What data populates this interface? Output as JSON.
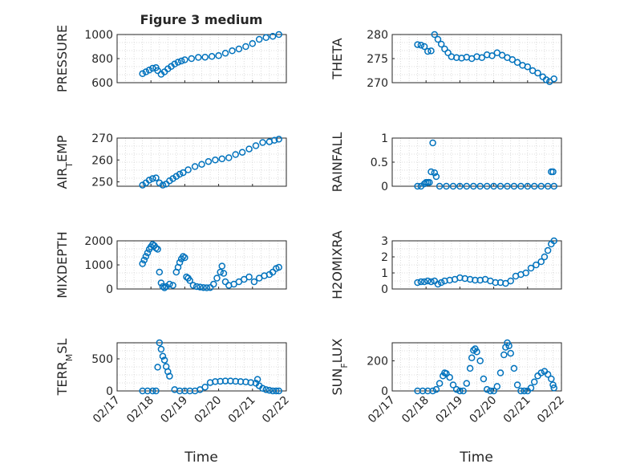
{
  "figure": {
    "title": "Figure 3 medium",
    "xlabel": "Time",
    "marker_color": "#0072bd"
  },
  "chart_data": [
    {
      "type": "scatter",
      "ylabel": "PRESSURE",
      "ylim": [
        600,
        1000
      ],
      "yticks": [
        "600",
        "800",
        "1000"
      ],
      "xlim": [
        0,
        5
      ],
      "xticks": [
        "02/17",
        "02/18",
        "02/19",
        "02/20",
        "02/21",
        "02/22"
      ],
      "show_xticks": false,
      "x": [
        0.75,
        0.85,
        0.95,
        1.05,
        1.15,
        1.2,
        1.3,
        1.4,
        1.5,
        1.6,
        1.7,
        1.8,
        1.9,
        2.0,
        2.2,
        2.4,
        2.6,
        2.8,
        3.0,
        3.2,
        3.4,
        3.6,
        3.8,
        4.0,
        4.2,
        4.4,
        4.6,
        4.78
      ],
      "y": [
        675,
        690,
        705,
        720,
        725,
        700,
        670,
        690,
        715,
        735,
        755,
        770,
        780,
        790,
        800,
        810,
        812,
        818,
        825,
        845,
        865,
        880,
        900,
        925,
        960,
        975,
        985,
        1000
      ]
    },
    {
      "type": "scatter",
      "ylabel": "THETA",
      "ylim": [
        270,
        280
      ],
      "yticks": [
        "270",
        "275",
        "280"
      ],
      "xlim": [
        0,
        5
      ],
      "xticks": [
        "02/17",
        "02/18",
        "02/19",
        "02/20",
        "02/21",
        "02/22"
      ],
      "show_xticks": false,
      "x": [
        0.75,
        0.85,
        0.95,
        1.05,
        1.15,
        1.25,
        1.35,
        1.45,
        1.55,
        1.65,
        1.75,
        1.9,
        2.05,
        2.2,
        2.35,
        2.5,
        2.65,
        2.8,
        2.95,
        3.1,
        3.25,
        3.4,
        3.55,
        3.7,
        3.85,
        4.0,
        4.15,
        4.3,
        4.45,
        4.55,
        4.65,
        4.78
      ],
      "y": [
        277.9,
        277.8,
        277.5,
        276.5,
        276.6,
        280.0,
        279.0,
        278.0,
        277.0,
        276.2,
        275.4,
        275.2,
        275.1,
        275.3,
        275.0,
        275.4,
        275.2,
        275.8,
        275.6,
        276.2,
        275.7,
        275.2,
        274.8,
        274.2,
        273.6,
        273.3,
        272.5,
        272.0,
        271.2,
        270.6,
        270.2,
        270.8
      ]
    },
    {
      "type": "scatter",
      "ylabel": "AIR_TEMP",
      "ylim": [
        248,
        270
      ],
      "yticks": [
        "250",
        "260",
        "270"
      ],
      "xlim": [
        0,
        5
      ],
      "xticks": [
        "02/17",
        "02/18",
        "02/19",
        "02/20",
        "02/21",
        "02/22"
      ],
      "show_xticks": false,
      "x": [
        0.75,
        0.85,
        0.95,
        1.05,
        1.15,
        1.25,
        1.35,
        1.45,
        1.55,
        1.65,
        1.75,
        1.85,
        1.95,
        2.1,
        2.3,
        2.5,
        2.7,
        2.9,
        3.1,
        3.3,
        3.5,
        3.7,
        3.9,
        4.1,
        4.3,
        4.5,
        4.65,
        4.78
      ],
      "y": [
        248.5,
        249.5,
        250.8,
        251.5,
        251.8,
        249.5,
        248.5,
        249.0,
        250.5,
        251.5,
        252.5,
        253.5,
        254.2,
        255.5,
        257.0,
        258.0,
        259.3,
        260.0,
        260.5,
        261.0,
        262.5,
        263.5,
        265.0,
        266.5,
        268.0,
        268.3,
        269.0,
        269.5
      ]
    },
    {
      "type": "scatter",
      "ylabel": "RAINFALL",
      "ylim": [
        0,
        1
      ],
      "yticks": [
        "0",
        "0.5",
        "1"
      ],
      "xlim": [
        0,
        5
      ],
      "xticks": [
        "02/17",
        "02/18",
        "02/19",
        "02/20",
        "02/21",
        "02/22"
      ],
      "show_xticks": false,
      "x": [
        0.75,
        0.85,
        0.95,
        1.0,
        1.05,
        1.1,
        1.15,
        1.2,
        1.25,
        1.3,
        1.4,
        1.6,
        1.8,
        2.0,
        2.2,
        2.4,
        2.6,
        2.8,
        3.0,
        3.2,
        3.4,
        3.6,
        3.8,
        4.0,
        4.2,
        4.4,
        4.6,
        4.7,
        4.75,
        4.78
      ],
      "y": [
        0,
        0,
        0.05,
        0.08,
        0.08,
        0.08,
        0.3,
        0.9,
        0.28,
        0.2,
        0,
        0,
        0,
        0,
        0,
        0,
        0,
        0,
        0,
        0,
        0,
        0,
        0,
        0,
        0,
        0,
        0,
        0.3,
        0.3,
        0
      ]
    },
    {
      "type": "scatter",
      "ylabel": "MIXDEPTH",
      "ylim": [
        0,
        2000
      ],
      "yticks": [
        "0",
        "1000",
        "2000"
      ],
      "xlim": [
        0,
        5
      ],
      "xticks": [
        "02/17",
        "02/18",
        "02/19",
        "02/20",
        "02/21",
        "02/22"
      ],
      "show_xticks": false,
      "x": [
        0.75,
        0.8,
        0.85,
        0.9,
        0.95,
        1.0,
        1.05,
        1.1,
        1.15,
        1.2,
        1.25,
        1.3,
        1.35,
        1.4,
        1.45,
        1.55,
        1.65,
        1.75,
        1.8,
        1.85,
        1.9,
        1.95,
        2.0,
        2.05,
        2.1,
        2.15,
        2.25,
        2.35,
        2.45,
        2.55,
        2.65,
        2.75,
        2.85,
        2.95,
        3.05,
        3.1,
        3.15,
        3.2,
        3.3,
        3.45,
        3.6,
        3.75,
        3.9,
        4.05,
        4.2,
        4.35,
        4.5,
        4.6,
        4.7,
        4.78
      ],
      "y": [
        1050,
        1200,
        1350,
        1500,
        1650,
        1750,
        1850,
        1800,
        1700,
        1650,
        700,
        250,
        100,
        50,
        100,
        200,
        150,
        700,
        900,
        1100,
        1250,
        1350,
        1300,
        500,
        450,
        350,
        150,
        100,
        80,
        60,
        50,
        60,
        200,
        450,
        700,
        950,
        650,
        300,
        150,
        200,
        300,
        400,
        500,
        300,
        450,
        550,
        600,
        700,
        850,
        900
      ]
    },
    {
      "type": "scatter",
      "ylabel": "H2OMIXRA",
      "ylim": [
        0,
        3
      ],
      "yticks": [
        "0",
        "1",
        "2",
        "3"
      ],
      "xlim": [
        0,
        5
      ],
      "xticks": [
        "02/17",
        "02/18",
        "02/19",
        "02/20",
        "02/21",
        "02/22"
      ],
      "show_xticks": false,
      "x": [
        0.75,
        0.85,
        0.95,
        1.05,
        1.15,
        1.25,
        1.35,
        1.45,
        1.55,
        1.7,
        1.85,
        2.0,
        2.15,
        2.3,
        2.45,
        2.6,
        2.75,
        2.9,
        3.05,
        3.2,
        3.35,
        3.5,
        3.65,
        3.8,
        3.95,
        4.1,
        4.25,
        4.4,
        4.5,
        4.6,
        4.7,
        4.78
      ],
      "y": [
        0.4,
        0.45,
        0.45,
        0.5,
        0.45,
        0.5,
        0.3,
        0.4,
        0.5,
        0.55,
        0.6,
        0.7,
        0.65,
        0.6,
        0.55,
        0.55,
        0.6,
        0.5,
        0.4,
        0.4,
        0.35,
        0.5,
        0.8,
        0.9,
        1.0,
        1.3,
        1.5,
        1.7,
        2.0,
        2.4,
        2.8,
        3.0
      ]
    },
    {
      "type": "scatter",
      "ylabel": "TERR_MSL",
      "ylim": [
        0,
        750
      ],
      "yticks": [
        "0",
        "500"
      ],
      "xlim": [
        0,
        5
      ],
      "xticks": [
        "02/17",
        "02/18",
        "02/19",
        "02/20",
        "02/21",
        "02/22"
      ],
      "show_xticks": true,
      "x": [
        0.75,
        0.9,
        1.05,
        1.15,
        1.2,
        1.25,
        1.3,
        1.35,
        1.4,
        1.45,
        1.5,
        1.55,
        1.7,
        1.85,
        2.0,
        2.15,
        2.3,
        2.45,
        2.6,
        2.75,
        2.9,
        3.05,
        3.2,
        3.35,
        3.5,
        3.65,
        3.8,
        3.95,
        4.1,
        4.15,
        4.2,
        4.3,
        4.4,
        4.5,
        4.6,
        4.7,
        4.78
      ],
      "y": [
        0,
        0,
        0,
        0,
        370,
        750,
        650,
        540,
        480,
        380,
        300,
        230,
        20,
        0,
        0,
        0,
        0,
        20,
        60,
        130,
        145,
        150,
        155,
        155,
        150,
        145,
        140,
        130,
        120,
        180,
        80,
        40,
        20,
        10,
        0,
        0,
        0
      ]
    },
    {
      "type": "scatter",
      "ylabel": "SUN_FLUX",
      "ylim": [
        0,
        320
      ],
      "yticks": [
        "0",
        "200"
      ],
      "xlim": [
        0,
        5
      ],
      "xticks": [
        "02/17",
        "02/18",
        "02/19",
        "02/20",
        "02/21",
        "02/22"
      ],
      "show_xticks": true,
      "x": [
        0.75,
        0.9,
        1.05,
        1.2,
        1.3,
        1.4,
        1.5,
        1.55,
        1.6,
        1.7,
        1.8,
        1.9,
        2.0,
        2.1,
        2.2,
        2.3,
        2.35,
        2.4,
        2.45,
        2.5,
        2.6,
        2.7,
        2.8,
        2.9,
        3.0,
        3.1,
        3.2,
        3.3,
        3.35,
        3.4,
        3.45,
        3.5,
        3.6,
        3.7,
        3.8,
        3.9,
        4.0,
        4.1,
        4.2,
        4.3,
        4.4,
        4.5,
        4.6,
        4.7,
        4.75,
        4.78
      ],
      "y": [
        0,
        0,
        0,
        0,
        10,
        50,
        100,
        120,
        115,
        90,
        40,
        10,
        0,
        0,
        50,
        150,
        220,
        270,
        280,
        260,
        200,
        80,
        10,
        0,
        0,
        30,
        120,
        240,
        290,
        320,
        300,
        250,
        150,
        40,
        0,
        0,
        0,
        20,
        60,
        100,
        120,
        130,
        110,
        80,
        40,
        20
      ]
    }
  ]
}
